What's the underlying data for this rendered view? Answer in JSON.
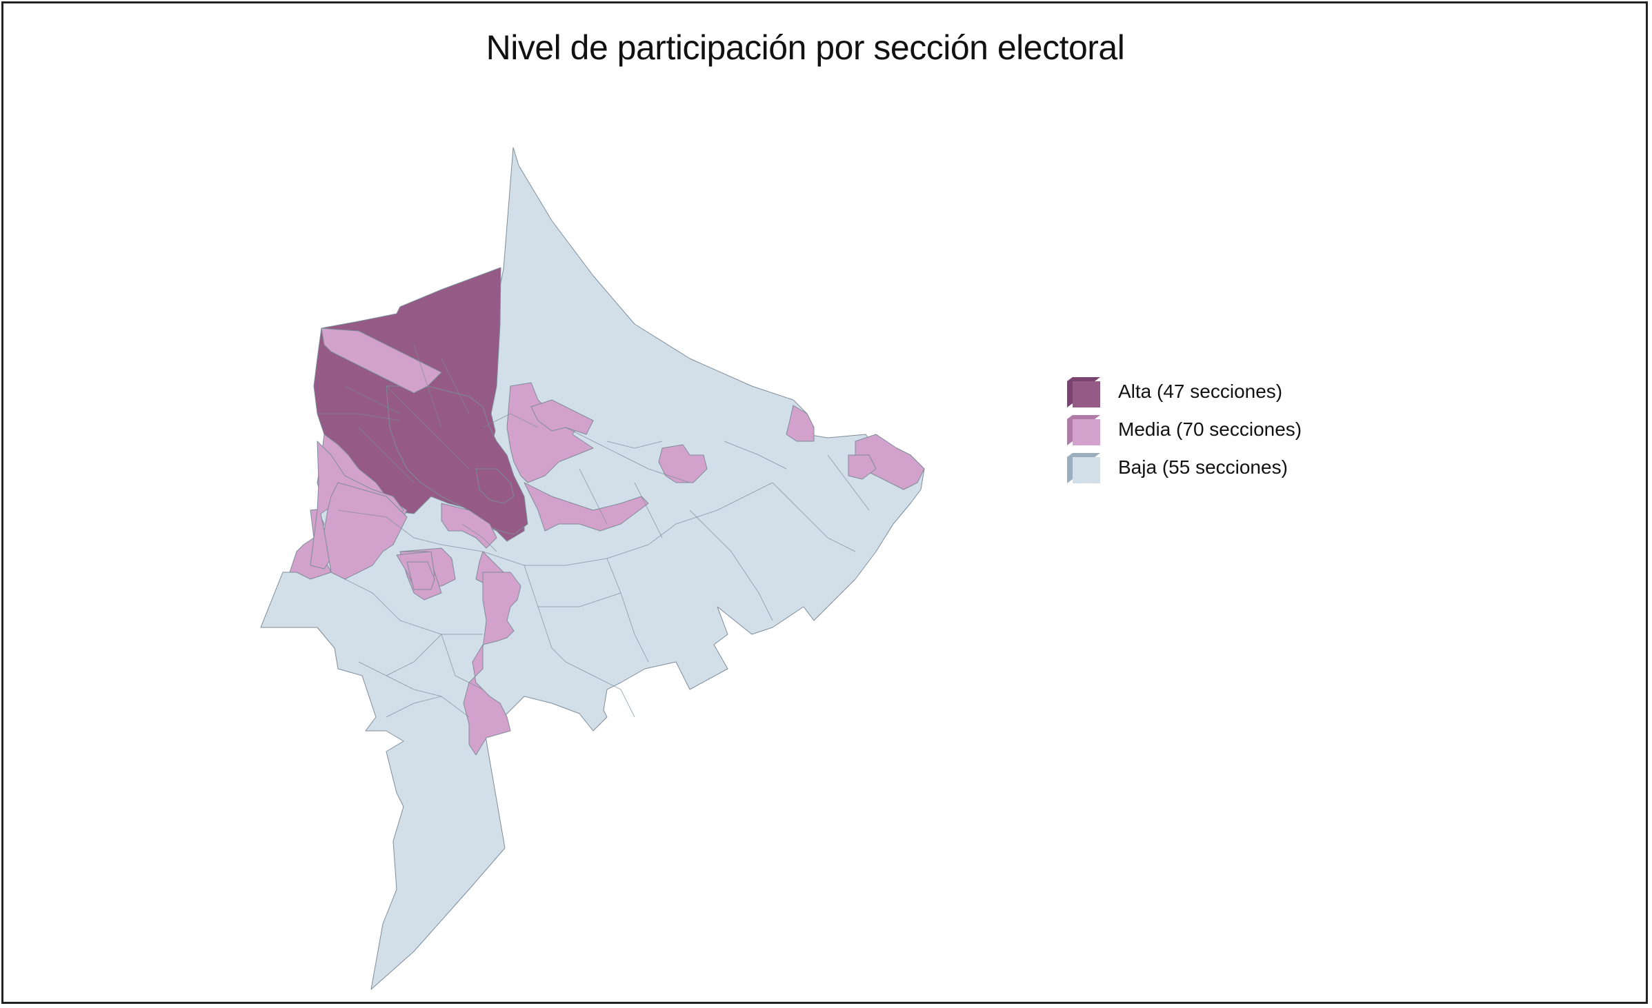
{
  "title": "Nivel de participación por sección electoral",
  "colors": {
    "alta": "#955a85",
    "alta_side": "#7a4370",
    "media": "#d3a2cc",
    "media_side": "#b07ba9",
    "baja": "#d2dfe9",
    "baja_side": "#9aaebd",
    "border": "#7d8c99"
  },
  "legend": {
    "items": [
      {
        "key": "alta",
        "label": "Alta (47 secciones)"
      },
      {
        "key": "media",
        "label": "Media (70 secciones)"
      },
      {
        "key": "baja",
        "label": "Baja (55 secciones)"
      }
    ]
  },
  "map": {
    "categories": {
      "alta": {
        "sections": 47
      },
      "media": {
        "sections": 70
      },
      "baja": {
        "sections": 55
      }
    }
  }
}
